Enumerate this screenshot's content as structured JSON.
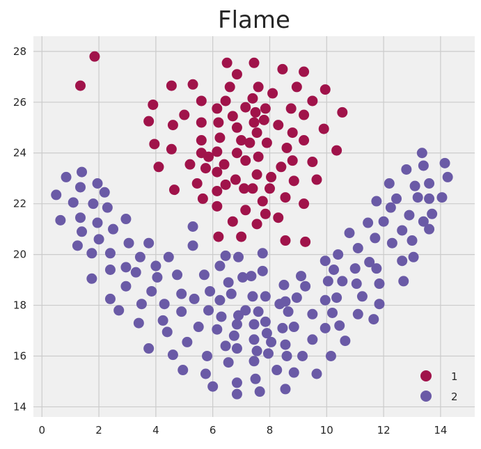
{
  "chart_data": {
    "type": "scatter",
    "title": "Flame",
    "xlabel": "",
    "ylabel": "",
    "xlim": [
      -0.3,
      15.2
    ],
    "ylim": [
      13.6,
      28.6
    ],
    "xticks": [
      0,
      2,
      4,
      6,
      8,
      10,
      12,
      14
    ],
    "yticks": [
      14,
      16,
      18,
      20,
      22,
      24,
      26,
      28
    ],
    "grid": true,
    "legend_position": "bottom-right",
    "series": [
      {
        "name": "1",
        "color": "#a0134a",
        "points": [
          [
            1.85,
            27.8
          ],
          [
            1.35,
            26.65
          ],
          [
            6.5,
            27.55
          ],
          [
            7.45,
            27.55
          ],
          [
            8.45,
            27.3
          ],
          [
            9.2,
            27.2
          ],
          [
            6.85,
            27.1
          ],
          [
            4.55,
            26.65
          ],
          [
            5.3,
            26.7
          ],
          [
            6.6,
            26.6
          ],
          [
            7.6,
            26.6
          ],
          [
            8.95,
            26.6
          ],
          [
            9.95,
            26.5
          ],
          [
            8.1,
            26.35
          ],
          [
            3.9,
            25.9
          ],
          [
            5.6,
            26.05
          ],
          [
            6.45,
            26.05
          ],
          [
            7.4,
            26.15
          ],
          [
            9.5,
            26.05
          ],
          [
            6.15,
            25.75
          ],
          [
            7.15,
            25.8
          ],
          [
            7.85,
            25.75
          ],
          [
            8.75,
            25.75
          ],
          [
            10.55,
            25.6
          ],
          [
            5.0,
            25.5
          ],
          [
            6.7,
            25.45
          ],
          [
            7.5,
            25.6
          ],
          [
            9.2,
            25.5
          ],
          [
            3.75,
            25.25
          ],
          [
            5.6,
            25.2
          ],
          [
            6.2,
            25.2
          ],
          [
            7.45,
            25.2
          ],
          [
            7.8,
            25.3
          ],
          [
            8.3,
            25.1
          ],
          [
            4.6,
            25.1
          ],
          [
            6.85,
            25.0
          ],
          [
            7.55,
            24.8
          ],
          [
            8.8,
            24.8
          ],
          [
            9.9,
            24.95
          ],
          [
            6.25,
            24.6
          ],
          [
            7.0,
            24.5
          ],
          [
            7.9,
            24.4
          ],
          [
            9.2,
            24.5
          ],
          [
            3.95,
            24.35
          ],
          [
            5.6,
            24.5
          ],
          [
            7.3,
            24.4
          ],
          [
            4.55,
            24.15
          ],
          [
            6.15,
            24.05
          ],
          [
            6.85,
            24.0
          ],
          [
            5.6,
            24.0
          ],
          [
            8.6,
            24.2
          ],
          [
            10.35,
            24.1
          ],
          [
            7.6,
            23.85
          ],
          [
            5.85,
            23.85
          ],
          [
            7.15,
            23.7
          ],
          [
            8.8,
            23.7
          ],
          [
            9.5,
            23.65
          ],
          [
            5.2,
            23.55
          ],
          [
            4.1,
            23.45
          ],
          [
            5.75,
            23.4
          ],
          [
            6.4,
            23.55
          ],
          [
            8.4,
            23.45
          ],
          [
            6.15,
            23.25
          ],
          [
            7.55,
            23.15
          ],
          [
            6.8,
            22.95
          ],
          [
            8.05,
            23.05
          ],
          [
            8.85,
            22.9
          ],
          [
            9.65,
            22.95
          ],
          [
            5.45,
            22.8
          ],
          [
            6.45,
            22.75
          ],
          [
            7.1,
            22.6
          ],
          [
            8.0,
            22.6
          ],
          [
            4.65,
            22.55
          ],
          [
            6.15,
            22.5
          ],
          [
            7.4,
            22.6
          ],
          [
            5.65,
            22.2
          ],
          [
            8.55,
            22.25
          ],
          [
            7.75,
            22.1
          ],
          [
            6.15,
            21.9
          ],
          [
            7.15,
            21.75
          ],
          [
            9.2,
            22.0
          ],
          [
            7.85,
            21.6
          ],
          [
            8.3,
            21.45
          ],
          [
            6.7,
            21.3
          ],
          [
            7.55,
            21.2
          ],
          [
            6.2,
            20.7
          ],
          [
            7.0,
            20.7
          ],
          [
            8.55,
            20.55
          ],
          [
            9.25,
            20.5
          ]
        ]
      },
      {
        "name": "2",
        "color": "#6a5aa6",
        "points": [
          [
            1.4,
            23.25
          ],
          [
            0.85,
            23.05
          ],
          [
            1.35,
            22.65
          ],
          [
            1.95,
            22.8
          ],
          [
            0.5,
            22.35
          ],
          [
            2.2,
            22.45
          ],
          [
            1.1,
            22.05
          ],
          [
            1.8,
            22.0
          ],
          [
            2.3,
            21.85
          ],
          [
            0.65,
            21.35
          ],
          [
            1.35,
            21.45
          ],
          [
            1.95,
            21.25
          ],
          [
            2.95,
            21.4
          ],
          [
            1.4,
            20.9
          ],
          [
            2.5,
            21.0
          ],
          [
            1.25,
            20.35
          ],
          [
            2.0,
            20.6
          ],
          [
            3.05,
            20.45
          ],
          [
            3.75,
            20.45
          ],
          [
            1.75,
            20.05
          ],
          [
            2.4,
            20.05
          ],
          [
            3.45,
            19.9
          ],
          [
            4.45,
            19.9
          ],
          [
            5.3,
            21.1
          ],
          [
            5.3,
            20.35
          ],
          [
            2.4,
            19.4
          ],
          [
            2.95,
            19.5
          ],
          [
            4.0,
            19.55
          ],
          [
            3.3,
            19.3
          ],
          [
            1.75,
            19.05
          ],
          [
            4.05,
            19.1
          ],
          [
            4.75,
            19.2
          ],
          [
            5.7,
            19.2
          ],
          [
            2.95,
            18.75
          ],
          [
            3.85,
            18.55
          ],
          [
            4.9,
            18.45
          ],
          [
            5.9,
            18.55
          ],
          [
            2.4,
            18.25
          ],
          [
            3.5,
            18.05
          ],
          [
            4.3,
            18.05
          ],
          [
            5.35,
            18.25
          ],
          [
            2.7,
            17.8
          ],
          [
            4.9,
            17.75
          ],
          [
            5.85,
            17.8
          ],
          [
            4.25,
            17.4
          ],
          [
            5.5,
            17.15
          ],
          [
            3.4,
            17.3
          ],
          [
            4.4,
            16.95
          ],
          [
            3.75,
            16.3
          ],
          [
            5.1,
            16.55
          ],
          [
            4.6,
            16.05
          ],
          [
            5.8,
            16.0
          ],
          [
            4.95,
            15.45
          ],
          [
            5.75,
            15.3
          ],
          [
            6.0,
            14.8
          ],
          [
            6.25,
            19.55
          ],
          [
            6.55,
            18.9
          ],
          [
            6.25,
            18.2
          ],
          [
            6.65,
            18.45
          ],
          [
            6.3,
            17.55
          ],
          [
            6.9,
            17.6
          ],
          [
            6.15,
            17.05
          ],
          [
            6.85,
            17.25
          ],
          [
            6.45,
            16.4
          ],
          [
            6.85,
            16.3
          ],
          [
            6.75,
            16.8
          ],
          [
            6.55,
            15.75
          ],
          [
            6.85,
            14.95
          ],
          [
            6.85,
            14.5
          ],
          [
            6.45,
            19.95
          ],
          [
            6.9,
            19.9
          ],
          [
            7.05,
            19.1
          ],
          [
            7.35,
            19.15
          ],
          [
            7.4,
            18.35
          ],
          [
            7.15,
            17.8
          ],
          [
            7.45,
            17.25
          ],
          [
            7.45,
            16.65
          ],
          [
            7.55,
            16.2
          ],
          [
            7.45,
            15.8
          ],
          [
            7.5,
            15.1
          ],
          [
            7.65,
            14.6
          ],
          [
            7.6,
            17.75
          ],
          [
            7.75,
            19.35
          ],
          [
            7.75,
            20.05
          ],
          [
            7.85,
            18.35
          ],
          [
            7.85,
            17.35
          ],
          [
            7.9,
            16.9
          ],
          [
            8.05,
            16.55
          ],
          [
            7.95,
            16.1
          ],
          [
            8.25,
            15.45
          ],
          [
            8.35,
            18.05
          ],
          [
            8.5,
            18.8
          ],
          [
            8.55,
            18.15
          ],
          [
            8.45,
            17.1
          ],
          [
            8.55,
            16.45
          ],
          [
            8.6,
            16.0
          ],
          [
            8.55,
            14.7
          ],
          [
            8.65,
            17.75
          ],
          [
            8.85,
            17.15
          ],
          [
            8.95,
            18.3
          ],
          [
            9.1,
            19.15
          ],
          [
            9.25,
            18.75
          ],
          [
            9.15,
            16.0
          ],
          [
            8.85,
            15.35
          ],
          [
            9.5,
            17.65
          ],
          [
            9.5,
            16.65
          ],
          [
            9.65,
            15.3
          ],
          [
            9.95,
            19.75
          ],
          [
            9.95,
            18.2
          ],
          [
            10.05,
            18.95
          ],
          [
            9.95,
            17.1
          ],
          [
            10.2,
            17.7
          ],
          [
            10.15,
            16.0
          ],
          [
            10.25,
            19.4
          ],
          [
            10.35,
            18.3
          ],
          [
            10.45,
            17.2
          ],
          [
            10.55,
            18.95
          ],
          [
            10.65,
            16.6
          ],
          [
            10.4,
            20.0
          ],
          [
            10.8,
            20.85
          ],
          [
            11.0,
            19.45
          ],
          [
            11.05,
            18.85
          ],
          [
            11.1,
            17.65
          ],
          [
            11.1,
            20.25
          ],
          [
            11.45,
            21.25
          ],
          [
            11.25,
            18.35
          ],
          [
            11.5,
            19.7
          ],
          [
            11.65,
            17.45
          ],
          [
            11.75,
            22.1
          ],
          [
            11.7,
            20.65
          ],
          [
            11.75,
            19.45
          ],
          [
            11.85,
            18.85
          ],
          [
            11.85,
            18.05
          ],
          [
            12.0,
            21.3
          ],
          [
            12.2,
            22.8
          ],
          [
            12.25,
            21.85
          ],
          [
            12.45,
            22.2
          ],
          [
            12.3,
            20.45
          ],
          [
            12.65,
            20.95
          ],
          [
            12.65,
            19.75
          ],
          [
            12.7,
            18.95
          ],
          [
            12.8,
            23.35
          ],
          [
            12.9,
            21.55
          ],
          [
            13.0,
            20.55
          ],
          [
            13.05,
            19.9
          ],
          [
            13.1,
            22.7
          ],
          [
            13.2,
            22.25
          ],
          [
            13.35,
            24.0
          ],
          [
            13.4,
            23.5
          ],
          [
            13.4,
            21.3
          ],
          [
            13.6,
            22.8
          ],
          [
            13.6,
            22.2
          ],
          [
            13.6,
            21.0
          ],
          [
            13.7,
            21.6
          ],
          [
            14.05,
            22.25
          ],
          [
            14.15,
            23.6
          ],
          [
            14.25,
            23.05
          ]
        ]
      }
    ]
  }
}
